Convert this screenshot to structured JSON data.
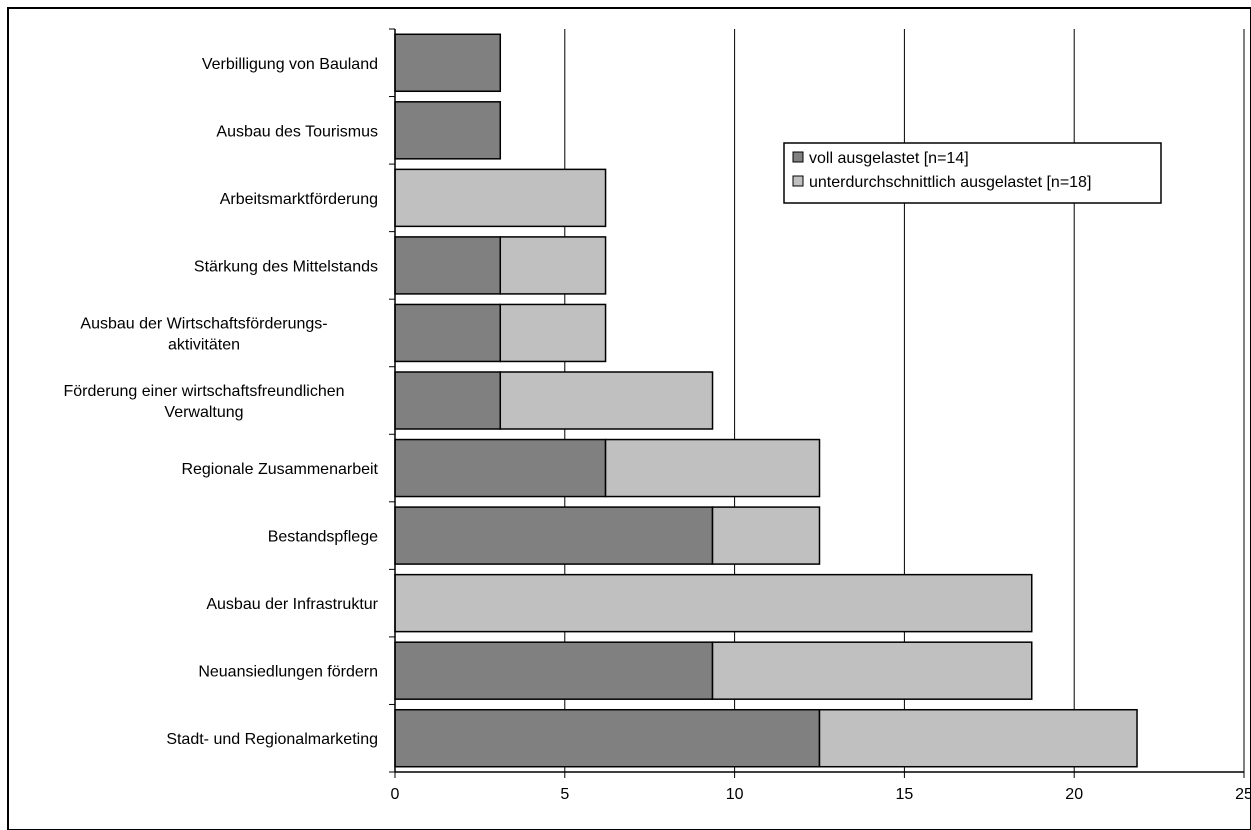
{
  "chart_data": {
    "type": "bar",
    "orientation": "horizontal",
    "stacked": true,
    "categories": [
      [
        "Verbilligung von Bauland"
      ],
      [
        "Ausbau des Tourismus"
      ],
      [
        "Arbeitsmarktförderung"
      ],
      [
        "Stärkung des Mittelstands"
      ],
      [
        "Ausbau der Wirtschaftsförderungs-",
        "aktivitäten"
      ],
      [
        "Förderung einer wirtschaftsfreundlichen",
        "Verwaltung"
      ],
      [
        "Regionale Zusammenarbeit"
      ],
      [
        "Bestandspflege"
      ],
      [
        "Ausbau der Infrastruktur"
      ],
      [
        "Neuansiedlungen fördern"
      ],
      [
        "Stadt- und Regionalmarketing"
      ]
    ],
    "series": [
      {
        "name": "voll ausgelastet [n=14]",
        "color": "#808080",
        "values": [
          3.1,
          3.1,
          0,
          3.1,
          3.1,
          3.1,
          6.2,
          9.35,
          0,
          9.35,
          12.5
        ]
      },
      {
        "name": "unterdurchschnittlich ausgelastet [n=18]",
        "color": "#c0c0c0",
        "values": [
          0,
          0,
          6.2,
          3.1,
          3.1,
          6.25,
          6.3,
          3.15,
          18.75,
          9.4,
          9.35
        ]
      }
    ],
    "xlim": [
      0,
      25
    ],
    "xticks": [
      0,
      5,
      10,
      15,
      20,
      25
    ],
    "grid": "vertical",
    "legend": "top-right",
    "title": "",
    "xlabel": "",
    "ylabel": ""
  }
}
